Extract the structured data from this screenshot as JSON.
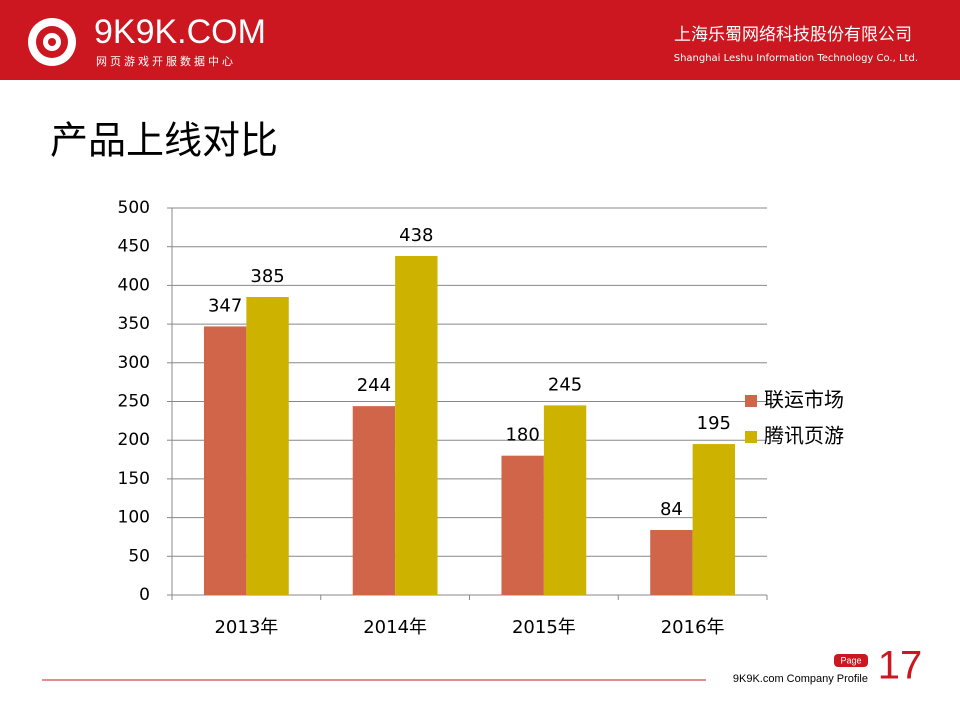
{
  "header": {
    "logo": "9K9K.COM",
    "logo_sub": "网页游戏开服数据中心",
    "company": "上海乐蜀网络科技股份有限公司",
    "company_en": "Shanghai Leshu Information Technology Co., Ltd."
  },
  "footer": {
    "profile": "9K9K.com Company Profile",
    "page_label": "Page",
    "page_number": "17"
  },
  "chart_data": {
    "type": "bar",
    "title": "产品上线对比",
    "categories": [
      "2013年",
      "2014年",
      "2015年",
      "2016年"
    ],
    "series": [
      {
        "name": "联运市场",
        "color": "#d0654a",
        "values": [
          347,
          244,
          180,
          84
        ]
      },
      {
        "name": "腾讯页游",
        "color": "#cdb200",
        "values": [
          385,
          438,
          245,
          195
        ]
      }
    ],
    "ylim": [
      0,
      500
    ],
    "yticks": [
      0,
      50,
      100,
      150,
      200,
      250,
      300,
      350,
      400,
      450,
      500
    ],
    "grid": true,
    "legend": "right"
  }
}
